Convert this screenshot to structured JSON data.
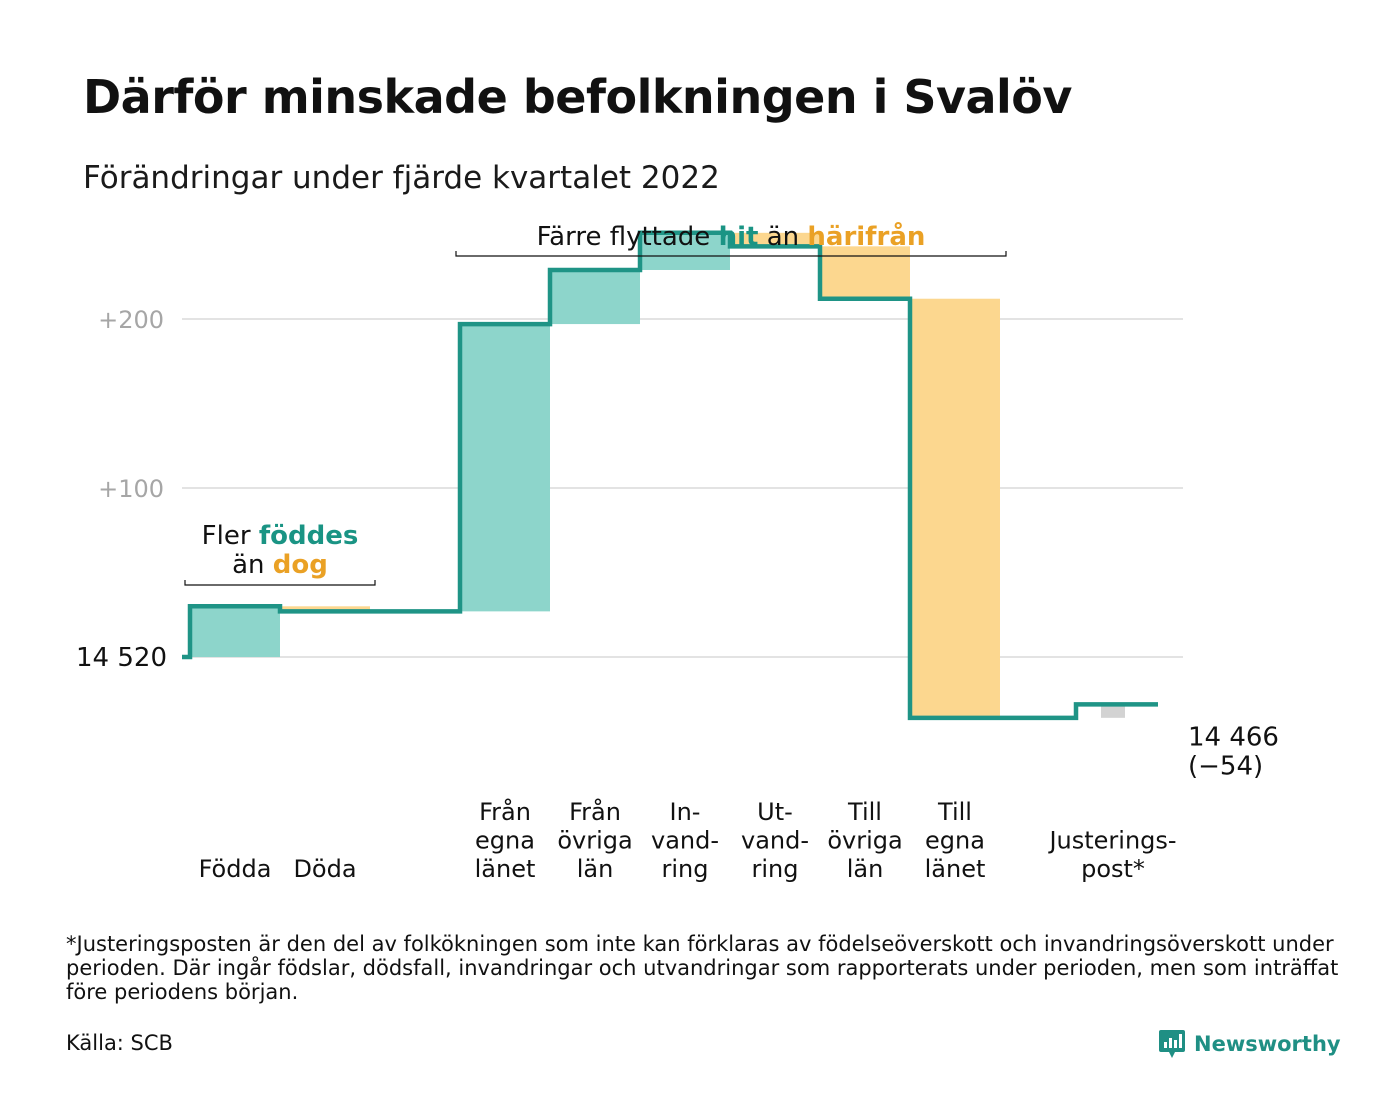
{
  "header": {
    "title": "Därför minskade befolkningen i Svalöv",
    "subtitle": "Förändringar under fjärde kvartalet 2022"
  },
  "colors": {
    "increase": "#8dd5cb",
    "decrease": "#fcd78f",
    "adjustment": "#d3d3d3",
    "line": "#1f9486",
    "teal_text": "#1a9484",
    "orange_text": "#eaa125",
    "grid": "#e3e3e3",
    "tick_text": "#a6a6a6"
  },
  "chart_data": {
    "type": "waterfall",
    "title": "Därför minskade befolkningen i Svalöv",
    "subtitle": "Förändringar under fjärde kvartalet 2022",
    "start_value": 14520,
    "start_label": "14 520",
    "end_value": 14466,
    "end_label": "14 466",
    "end_change_label": "(−54)",
    "y_ticks": [
      {
        "value": 14620,
        "label": "+100"
      },
      {
        "value": 14720,
        "label": "+200"
      }
    ],
    "ylim": [
      14460,
      14785
    ],
    "grid": true,
    "categories": [
      {
        "lines": [
          "Födda"
        ],
        "change": 30,
        "kind": "increase"
      },
      {
        "lines": [
          "Döda"
        ],
        "change": -3,
        "kind": "decrease"
      },
      {
        "lines": [
          "Från",
          "egna",
          "länet"
        ],
        "change": 170,
        "kind": "increase"
      },
      {
        "lines": [
          "Från",
          "övriga",
          "län"
        ],
        "change": 32,
        "kind": "increase"
      },
      {
        "lines": [
          "In-",
          "vand-",
          "ring"
        ],
        "change": 22,
        "kind": "increase"
      },
      {
        "lines": [
          "Ut-",
          "vand-",
          "ring"
        ],
        "change": -8,
        "kind": "decrease"
      },
      {
        "lines": [
          "Till",
          "övriga",
          "län"
        ],
        "change": -31,
        "kind": "decrease"
      },
      {
        "lines": [
          "Till",
          "egna",
          "länet"
        ],
        "change": -248,
        "kind": "decrease"
      },
      {
        "lines": [
          "Justerings-",
          "post*"
        ],
        "change": 8,
        "kind": "adjustment"
      }
    ],
    "annotations": [
      {
        "id": "births",
        "lines": [
          [
            {
              "text": "Fler ",
              "style": "plain"
            },
            {
              "text": "föddes",
              "style": "teal"
            }
          ],
          [
            {
              "text": "än ",
              "style": "plain"
            },
            {
              "text": "dog",
              "style": "orange"
            }
          ]
        ]
      },
      {
        "id": "migration",
        "lines": [
          [
            {
              "text": "Färre flyttade ",
              "style": "plain"
            },
            {
              "text": "hit",
              "style": "teal"
            },
            {
              "text": " än ",
              "style": "plain"
            },
            {
              "text": "härifrån",
              "style": "orange"
            }
          ]
        ]
      }
    ]
  },
  "footer": {
    "footnote": "*Justeringsposten är den del av folkökningen som inte kan förklaras av födelseöverskott och invandringsöverskott under perioden. Där ingår födslar, dödsfall, invandringar och utvandringar som rapporterats under perioden, men som inträffat före periodens början.",
    "source": "Källa: SCB",
    "brand": "Newsworthy",
    "brand_icon": "newsworthy-logo-icon"
  }
}
